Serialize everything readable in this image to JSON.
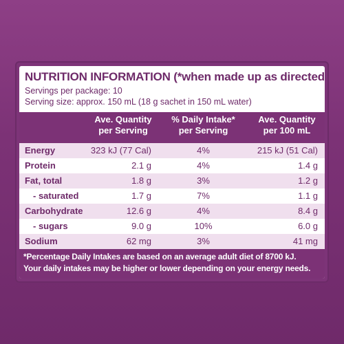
{
  "title": "NUTRITION INFORMATION (*when made up as directed)",
  "servings_per_package": "Servings per package: 10",
  "serving_size": "Serving size: approx. 150 mL (18 g sachet in 150 mL water)",
  "headers": {
    "per_serving": [
      "Ave. Quantity",
      "per Serving"
    ],
    "daily_intake": [
      "% Daily Intake*",
      "per Serving"
    ],
    "per_100ml": [
      "Ave. Quantity",
      "per 100 mL"
    ]
  },
  "rows": [
    {
      "label": "Energy",
      "serving": "323 kJ (77 Cal)",
      "di": "4%",
      "per100": "215 kJ (51 Cal)"
    },
    {
      "label": "Protein",
      "serving": "2.1 g",
      "di": "4%",
      "per100": "1.4 g"
    },
    {
      "label": "Fat, total",
      "serving": "1.8 g",
      "di": "3%",
      "per100": "1.2 g"
    },
    {
      "label": "- saturated",
      "serving": "1.7 g",
      "di": "7%",
      "per100": "1.1 g"
    },
    {
      "label": "Carbohydrate",
      "serving": "12.6 g",
      "di": "4%",
      "per100": "8.4 g"
    },
    {
      "label": "- sugars",
      "serving": "9.0 g",
      "di": "10%",
      "per100": "6.0 g"
    },
    {
      "label": "Sodium",
      "serving": "62 mg",
      "di": "3%",
      "per100": "41 mg"
    }
  ],
  "footnote": [
    "*Percentage Daily Intakes are based on an average adult diet of 8700 kJ.",
    "Your daily intakes may be higher or lower depending on your energy needs."
  ],
  "colors": {
    "brand_purple": "#7c3276",
    "row_shade": "#f0dfee",
    "text": "#6e2a69"
  }
}
